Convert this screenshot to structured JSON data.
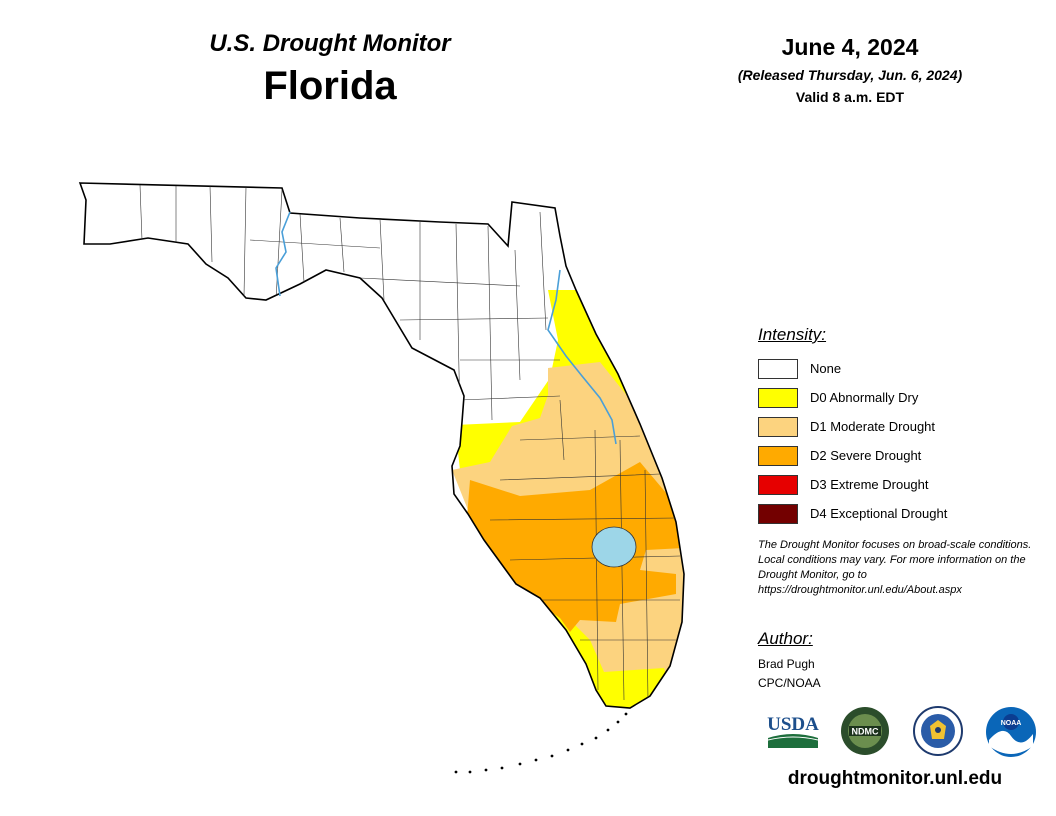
{
  "header": {
    "series_title": "U.S. Drought Monitor",
    "state": "Florida",
    "date": "June 4, 2024",
    "released": "(Released Thursday, Jun. 6, 2024)",
    "valid": "Valid 8 a.m. EDT"
  },
  "colors": {
    "none": "#ffffff",
    "d0": "#ffff00",
    "d1": "#fcd37f",
    "d2": "#ffaa00",
    "d3": "#e60000",
    "d4": "#730000",
    "water": "#9dd6e8",
    "river": "#4a9fd8"
  },
  "legend": {
    "title": "Intensity:",
    "items": [
      {
        "label": "None",
        "color": "#ffffff"
      },
      {
        "label": "D0 Abnormally Dry",
        "color": "#ffff00"
      },
      {
        "label": "D1 Moderate Drought",
        "color": "#fcd37f"
      },
      {
        "label": "D2 Severe Drought",
        "color": "#ffaa00"
      },
      {
        "label": "D3 Extreme Drought",
        "color": "#e60000"
      },
      {
        "label": "D4 Exceptional Drought",
        "color": "#730000"
      }
    ]
  },
  "note": "The Drought Monitor focuses on broad-scale conditions. Local conditions may vary. For more information on the Drought Monitor, go to https://droughtmonitor.unl.edu/About.aspx",
  "author": {
    "title": "Author:",
    "name": "Brad Pugh",
    "org": "CPC/NOAA"
  },
  "logos": [
    {
      "name": "usda",
      "text": "USDA"
    },
    {
      "name": "ndmc",
      "text": "NDMC"
    },
    {
      "name": "doc",
      "text": ""
    },
    {
      "name": "noaa",
      "text": "NOAA"
    }
  ],
  "footer": {
    "site": "droughtmonitor.unl.edu"
  }
}
